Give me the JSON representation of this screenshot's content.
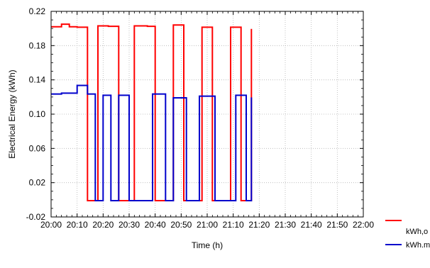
{
  "chart_data": {
    "type": "line",
    "xlabel": "Time (h)",
    "ylabel": "Electrical Energy (kWh)",
    "x_tick_labels": [
      "20:00",
      "20:10",
      "20:20",
      "20:30",
      "20:40",
      "20:50",
      "21:00",
      "21:10",
      "21:20",
      "21:30",
      "21:40",
      "21:50",
      "22:00"
    ],
    "y_tick_labels": [
      "-0.02",
      "0.02",
      "0.06",
      "0.10",
      "0.14",
      "0.18",
      "0.22"
    ],
    "xlim": [
      "20:00",
      "22:00"
    ],
    "ylim": [
      -0.02,
      0.22
    ],
    "grid": true,
    "legend_position": "right-bottom",
    "series": [
      {
        "name": "kWh,o",
        "color": "#ff0000",
        "step_points": [
          [
            "20:00",
            0.202
          ],
          [
            "20:04",
            0.202
          ],
          [
            "20:04",
            0.205
          ],
          [
            "20:07",
            0.205
          ],
          [
            "20:07",
            0.202
          ],
          [
            "20:10",
            0.202
          ],
          [
            "20:10",
            0.2015
          ],
          [
            "20:14",
            0.2015
          ],
          [
            "20:14",
            -0.001
          ],
          [
            "20:18",
            -0.001
          ],
          [
            "20:18",
            0.203
          ],
          [
            "20:22",
            0.203
          ],
          [
            "20:22",
            0.2025
          ],
          [
            "20:26",
            0.2025
          ],
          [
            "20:26",
            -0.001
          ],
          [
            "20:32",
            -0.001
          ],
          [
            "20:32",
            0.203
          ],
          [
            "20:37",
            0.203
          ],
          [
            "20:37",
            0.2025
          ],
          [
            "20:40",
            0.2025
          ],
          [
            "20:40",
            -0.001
          ],
          [
            "20:47",
            -0.001
          ],
          [
            "20:47",
            0.204
          ],
          [
            "20:51",
            0.204
          ],
          [
            "20:51",
            -0.001
          ],
          [
            "20:58",
            -0.001
          ],
          [
            "20:58",
            0.2015
          ],
          [
            "21:02",
            0.2015
          ],
          [
            "21:02",
            -0.001
          ],
          [
            "21:09",
            -0.001
          ],
          [
            "21:09",
            0.2015
          ],
          [
            "21:13",
            0.2015
          ],
          [
            "21:13",
            -0.001
          ],
          [
            "21:17",
            -0.001
          ],
          [
            "21:17",
            0.1995
          ]
        ]
      },
      {
        "name": "kWh.m",
        "color": "#0000cc",
        "step_points": [
          [
            "20:00",
            0.1235
          ],
          [
            "20:04",
            0.1235
          ],
          [
            "20:04",
            0.1245
          ],
          [
            "20:10",
            0.1245
          ],
          [
            "20:10",
            0.1335
          ],
          [
            "20:14",
            0.1335
          ],
          [
            "20:14",
            0.1235
          ],
          [
            "20:17",
            0.1235
          ],
          [
            "20:17",
            -0.001
          ],
          [
            "20:20",
            -0.001
          ],
          [
            "20:20",
            0.122
          ],
          [
            "20:23",
            0.122
          ],
          [
            "20:23",
            -0.001
          ],
          [
            "20:26",
            -0.001
          ],
          [
            "20:26",
            0.122
          ],
          [
            "20:30",
            0.122
          ],
          [
            "20:30",
            -0.001
          ],
          [
            "20:39",
            -0.001
          ],
          [
            "20:39",
            0.1235
          ],
          [
            "20:44",
            0.1235
          ],
          [
            "20:44",
            -0.001
          ],
          [
            "20:47",
            -0.001
          ],
          [
            "20:47",
            0.119
          ],
          [
            "20:52",
            0.119
          ],
          [
            "20:52",
            -0.001
          ],
          [
            "20:57",
            -0.001
          ],
          [
            "20:57",
            0.121
          ],
          [
            "21:03",
            0.121
          ],
          [
            "21:03",
            -0.001
          ],
          [
            "21:11",
            -0.001
          ],
          [
            "21:11",
            0.122
          ],
          [
            "21:15",
            0.122
          ],
          [
            "21:15",
            -0.001
          ],
          [
            "21:17",
            -0.001
          ],
          [
            "21:17",
            0.1195
          ]
        ]
      }
    ]
  }
}
